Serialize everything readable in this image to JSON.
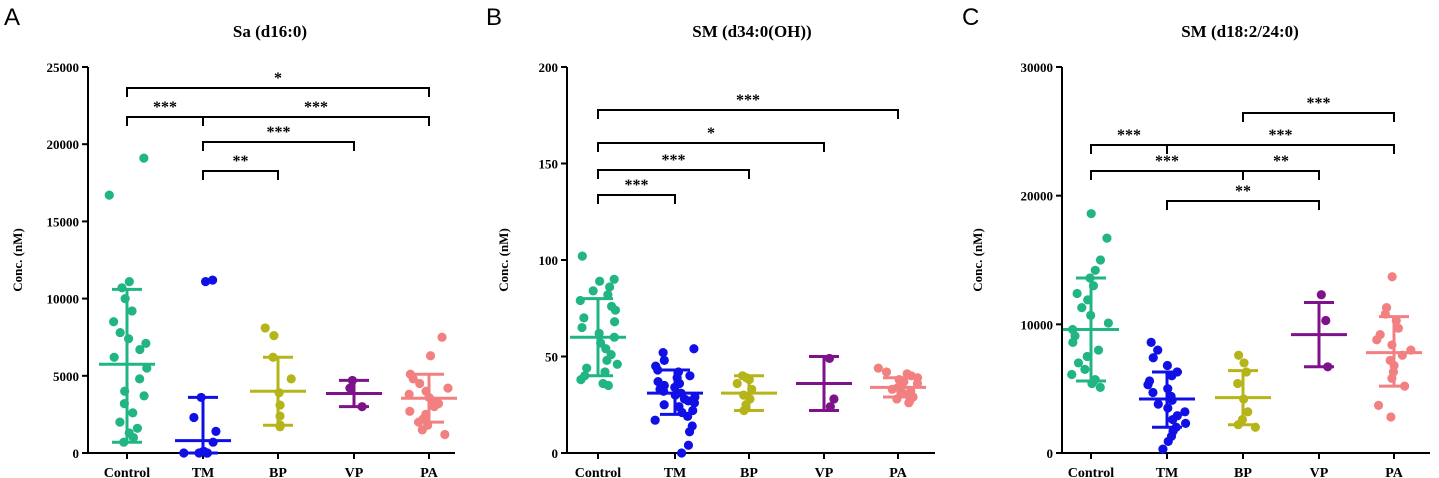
{
  "figure": {
    "categories": [
      "Control",
      "TM",
      "BP",
      "VP",
      "PA"
    ],
    "group_colors": [
      "#21b585",
      "#1010e6",
      "#b5b51a",
      "#7d128a",
      "#f28080"
    ],
    "axis_color": "#000000"
  },
  "chart_data": [
    {
      "type": "scatter",
      "panel": "A",
      "title": "Sa (d16:0)",
      "ylabel": "Conc. (nM)",
      "ylim": [
        0,
        25000
      ],
      "yticks": [
        0,
        5000,
        10000,
        15000,
        20000,
        25000
      ],
      "groups": [
        {
          "name": "Control",
          "mean": 5750,
          "sd_low": 700,
          "sd_high": 10600,
          "points": [
            19100,
            16700,
            11100,
            10700,
            10000,
            9200,
            8500,
            7800,
            7400,
            7100,
            6700,
            6200,
            5500,
            4800,
            4000,
            3700,
            3200,
            2600,
            2000,
            1600,
            1300,
            1000,
            700
          ]
        },
        {
          "name": "TM",
          "mean": 800,
          "sd_low": 0,
          "sd_high": 3600,
          "points": [
            11200,
            11100,
            3600,
            2300,
            1400,
            700,
            100,
            100,
            100,
            0,
            0,
            0,
            0
          ]
        },
        {
          "name": "BP",
          "mean": 4000,
          "sd_low": 1800,
          "sd_high": 6200,
          "points": [
            8100,
            7600,
            6200,
            4800,
            3900,
            3100,
            2400,
            1800,
            1700
          ]
        },
        {
          "name": "VP",
          "mean": 3850,
          "sd_low": 3000,
          "sd_high": 4700,
          "points": [
            4700,
            4200,
            3000
          ]
        },
        {
          "name": "PA",
          "mean": 3550,
          "sd_low": 2000,
          "sd_high": 5100,
          "points": [
            7500,
            6300,
            5100,
            4800,
            4500,
            4200,
            4000,
            3800,
            3600,
            3400,
            3200,
            3000,
            2700,
            2500,
            2200,
            2000,
            1800,
            1500,
            1200
          ]
        }
      ],
      "annotations": [
        {
          "from": "Control",
          "to": "PA",
          "label": "*"
        },
        {
          "from": "Control",
          "to": "TM",
          "label": "***"
        },
        {
          "from": "TM",
          "to": "PA",
          "label": "***"
        },
        {
          "from": "TM",
          "to": "VP",
          "label": "***"
        },
        {
          "from": "TM",
          "to": "BP",
          "label": "**"
        }
      ]
    },
    {
      "type": "scatter",
      "panel": "B",
      "title": "SM (d34:0(OH))",
      "ylabel": "Conc. (nM)",
      "ylim": [
        0,
        200
      ],
      "yticks": [
        0,
        50,
        100,
        150,
        200
      ],
      "groups": [
        {
          "name": "Control",
          "mean": 60,
          "sd_low": 40,
          "sd_high": 80,
          "points": [
            102,
            90,
            89,
            86,
            84,
            82,
            79,
            76,
            74,
            70,
            68,
            65,
            62,
            60,
            57,
            54,
            51,
            48,
            46,
            44,
            42,
            40,
            38,
            36,
            35
          ]
        },
        {
          "name": "TM",
          "mean": 31,
          "sd_low": 20,
          "sd_high": 43,
          "points": [
            54,
            52,
            48,
            45,
            43,
            42,
            40,
            39,
            37,
            36,
            35,
            34,
            33,
            32,
            31,
            30,
            29,
            28,
            27,
            26,
            25,
            24,
            22,
            21,
            19,
            17,
            14,
            11,
            4,
            0
          ]
        },
        {
          "name": "BP",
          "mean": 31,
          "sd_low": 22,
          "sd_high": 40,
          "points": [
            40,
            39,
            38,
            36,
            33,
            30,
            28,
            25,
            22
          ]
        },
        {
          "name": "VP",
          "mean": 36,
          "sd_low": 22,
          "sd_high": 50,
          "points": [
            49,
            28,
            24
          ]
        },
        {
          "name": "PA",
          "mean": 34,
          "sd_low": 29,
          "sd_high": 39,
          "points": [
            44,
            42,
            41,
            40,
            39,
            38,
            37,
            36,
            35,
            34,
            33,
            32,
            31,
            30,
            29,
            28,
            27,
            26
          ]
        }
      ],
      "annotations": [
        {
          "from": "Control",
          "to": "PA",
          "label": "***"
        },
        {
          "from": "Control",
          "to": "VP",
          "label": "*"
        },
        {
          "from": "Control",
          "to": "BP",
          "label": "***"
        },
        {
          "from": "Control",
          "to": "TM",
          "label": "***"
        }
      ]
    },
    {
      "type": "scatter",
      "panel": "C",
      "title": "SM (d18:2/24:0)",
      "ylabel": "Conc. (nM)",
      "ylim": [
        0,
        30000
      ],
      "yticks": [
        0,
        10000,
        20000,
        30000
      ],
      "groups": [
        {
          "name": "Control",
          "mean": 9600,
          "sd_low": 5600,
          "sd_high": 13600,
          "points": [
            18600,
            16700,
            15000,
            14200,
            13600,
            13000,
            12400,
            11900,
            11300,
            10700,
            10100,
            9600,
            9100,
            8600,
            8000,
            7500,
            7000,
            6500,
            6100,
            5700,
            5400,
            5100
          ]
        },
        {
          "name": "TM",
          "mean": 4200,
          "sd_low": 2000,
          "sd_high": 6300,
          "points": [
            8600,
            8000,
            7400,
            6800,
            6300,
            6000,
            5600,
            5300,
            5000,
            4700,
            4400,
            4100,
            3800,
            3500,
            3200,
            2900,
            2600,
            2300,
            2000,
            1700,
            1300,
            900,
            300
          ]
        },
        {
          "name": "BP",
          "mean": 4300,
          "sd_low": 2200,
          "sd_high": 6400,
          "points": [
            7600,
            7000,
            6300,
            5400,
            4200,
            3200,
            2600,
            2200,
            2000
          ]
        },
        {
          "name": "VP",
          "mean": 9200,
          "sd_low": 6700,
          "sd_high": 11700,
          "points": [
            12300,
            10300,
            6700
          ]
        },
        {
          "name": "PA",
          "mean": 7800,
          "sd_low": 5200,
          "sd_high": 10600,
          "points": [
            13700,
            11300,
            10800,
            10300,
            9700,
            9200,
            8800,
            8400,
            8000,
            7600,
            7200,
            6800,
            6300,
            5800,
            5200,
            3700,
            2800
          ]
        }
      ],
      "annotations": [
        {
          "from": "BP",
          "to": "PA",
          "label": "***"
        },
        {
          "from": "Control",
          "to": "TM",
          "label": "***"
        },
        {
          "from": "TM",
          "to": "PA",
          "label": "***"
        },
        {
          "from": "Control",
          "to": "BP",
          "label": "***"
        },
        {
          "from": "BP",
          "to": "VP",
          "label": "**"
        },
        {
          "from": "TM",
          "to": "VP",
          "label": "**"
        }
      ]
    }
  ]
}
